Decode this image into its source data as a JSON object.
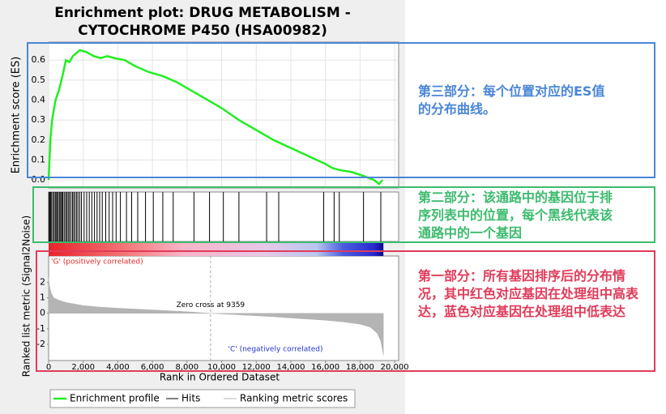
{
  "chart_data": [
    {
      "type": "line",
      "title": "Enrichment plot: DRUG METABOLISM - CYTOCHROME P450 (HSA00982)",
      "y_label": "Enrichment score (ES)",
      "x": [
        0,
        100,
        200,
        400,
        600,
        800,
        1000,
        1200,
        1400,
        1800,
        2200,
        2600,
        3000,
        3400,
        3800,
        4400,
        5000,
        5800,
        6600,
        7400,
        8200,
        9000,
        10000,
        11000,
        12000,
        13000,
        14000,
        15000,
        16000,
        16400,
        16800,
        17500,
        18200,
        18800,
        19100,
        19300
      ],
      "series": [
        {
          "name": "Enrichment profile",
          "color": "#22ee22",
          "values": [
            0,
            0.2,
            0.3,
            0.4,
            0.45,
            0.52,
            0.6,
            0.59,
            0.62,
            0.65,
            0.64,
            0.62,
            0.61,
            0.62,
            0.61,
            0.6,
            0.57,
            0.54,
            0.52,
            0.49,
            0.45,
            0.41,
            0.36,
            0.3,
            0.25,
            0.2,
            0.16,
            0.12,
            0.08,
            0.06,
            0.05,
            0.04,
            0.02,
            0.0,
            -0.02,
            0.0
          ]
        }
      ],
      "xlim": [
        0,
        20230
      ],
      "ylim": [
        -0.04,
        0.69
      ],
      "yticks": [
        {
          "value": 0,
          "label": "0.0"
        },
        0.1,
        0.2,
        0.3,
        0.4,
        0.5,
        0.6
      ],
      "grid": true
    },
    {
      "type": "hits",
      "name": "Hits",
      "color": "#000000",
      "x": [
        20,
        60,
        110,
        150,
        230,
        300,
        380,
        430,
        500,
        560,
        640,
        700,
        760,
        820,
        900,
        980,
        1050,
        1130,
        1200,
        1290,
        1380,
        1450,
        1530,
        1620,
        1700,
        1800,
        1900,
        2050,
        2200,
        2350,
        2500,
        2650,
        2800,
        2950,
        3100,
        3300,
        3500,
        3700,
        3900,
        4150,
        4500,
        4800,
        5150,
        5600,
        6050,
        6600,
        7200,
        8400,
        9300,
        10100,
        11000,
        12600,
        13300,
        15900,
        16500,
        16800,
        18200,
        19200
      ],
      "xlim": [
        0,
        20230
      ]
    },
    {
      "type": "area",
      "y_label": "Ranked list metric (Signal2Noise)",
      "x_label": "Rank in Ordered Dataset",
      "x": [
        0,
        50,
        150,
        300,
        600,
        1000,
        2000,
        3000,
        4000,
        6000,
        8000,
        9359,
        11000,
        13000,
        14000,
        16000,
        17000,
        18000,
        18600,
        19000,
        19200,
        19300,
        19350
      ],
      "series": [
        {
          "name": "Ranking metric scores",
          "color": "#b4b4b4",
          "values": [
            2.3,
            1.8,
            1.3,
            1.0,
            0.85,
            0.7,
            0.5,
            0.4,
            0.33,
            0.22,
            0.1,
            0,
            -0.1,
            -0.22,
            -0.3,
            -0.45,
            -0.55,
            -0.7,
            -0.9,
            -1.3,
            -1.8,
            -2.4,
            -2.7
          ]
        }
      ],
      "xlim": [
        0,
        20230
      ],
      "xticks": [
        0,
        {
          "value": 2000,
          "label": "2,000"
        },
        {
          "value": 4000,
          "label": "4,000"
        },
        {
          "value": 6000,
          "label": "6,000"
        },
        {
          "value": 8000,
          "label": "8,000"
        },
        {
          "value": 10000,
          "label": "10,000"
        },
        {
          "value": 12000,
          "label": "12,000"
        },
        {
          "value": 14000,
          "label": "14,000"
        },
        {
          "value": 16000,
          "label": "16,000"
        },
        {
          "value": 18000,
          "label": "18,000"
        },
        {
          "value": 20000,
          "label": "20,000"
        }
      ],
      "ylim": [
        -3.05,
        3.7
      ],
      "yticks": [
        -2,
        -1,
        0,
        1,
        2
      ],
      "zero_cross": 9359,
      "annotations": [
        "'G' (positively correlated)",
        "Zero cross at 9359",
        "'C' (negatively correlated)"
      ]
    }
  ],
  "notes": [
    {
      "text": "第三部分：每个位置对应的ES值的分布曲线。",
      "color": "#4a86d6"
    },
    {
      "text": "第二部分：该通路中的基因位于排序列表中的位置，每个黑线代表该通路中的一个基因",
      "color": "#3dbb6f"
    },
    {
      "text": "第一部分：所有基因排序后的分布情况，其中红色对应基因在处理组中高表达，蓝色对应基因在处理组中低表达",
      "color": "#e03c5a"
    }
  ]
}
